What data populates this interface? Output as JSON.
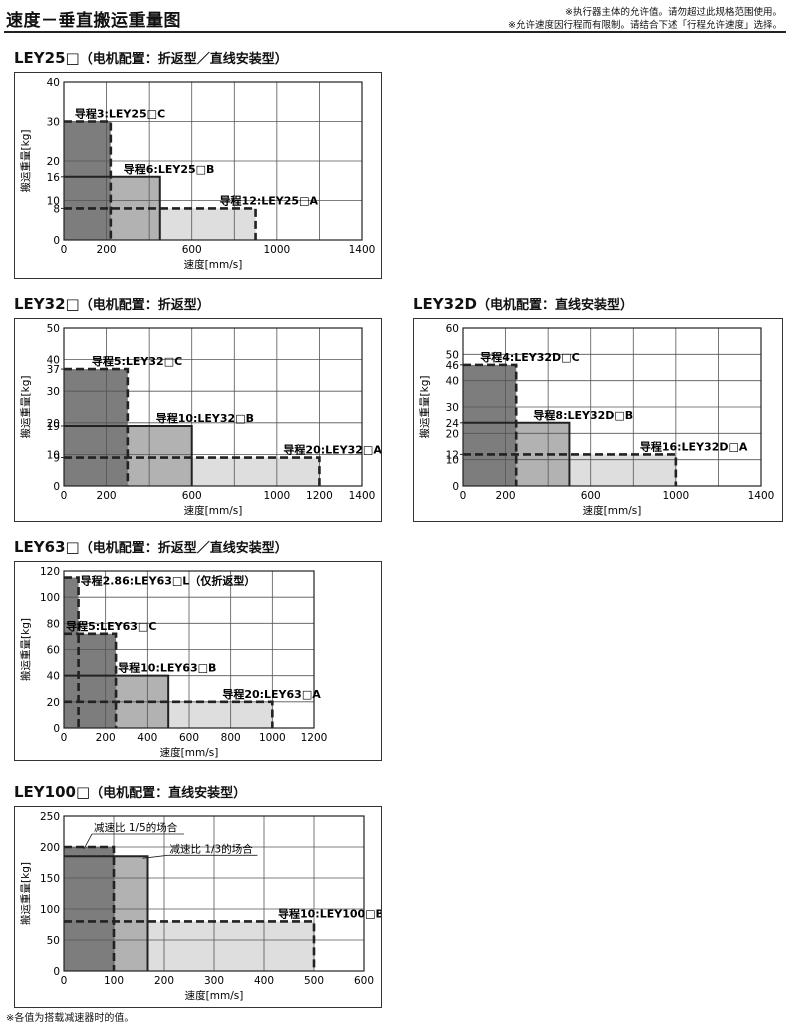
{
  "header": {
    "title": "速度－垂直搬运重量图",
    "notes": [
      "※执行器主体的允许值。请勿超过此规格范围使用。",
      "※允许速度因行程而有限制。请结合下述「行程允许速度」选择。"
    ]
  },
  "footnote": "※各值为搭载减速器时的值。",
  "panels": [
    {
      "model": "LEY25□",
      "config": "（电机配置：折返型／直线安装型）"
    },
    {
      "model": "LEY32□",
      "config": "（电机配置：折返型）"
    },
    {
      "model": "LEY32D",
      "config": "（电机配置：直线安装型）"
    },
    {
      "model": "LEY63□",
      "config": "（电机配置：折返型／直线安装型）"
    },
    {
      "model": "LEY100□",
      "config": "（电机配置：直线安装型）"
    }
  ],
  "colors": {
    "dark": "#7d7d7d",
    "mid": "#b2b2b2",
    "light": "#dedede",
    "grid": "#555555",
    "line": "#222222"
  },
  "chart_data": [
    {
      "type": "area",
      "xlabel": "速度[mm/s]",
      "ylabel": "搬运重量[kg]",
      "xlim": [
        0,
        1400
      ],
      "ylim": [
        0,
        40
      ],
      "xticks": [
        0,
        200,
        600,
        1000,
        1400
      ],
      "yticks": [
        0,
        8,
        10,
        16,
        20,
        30,
        40
      ],
      "grid": true,
      "series": [
        {
          "name": "导程3:LEY25□C",
          "speed_max": 220,
          "load_max": 30,
          "shade": "dark",
          "style": "dashed"
        },
        {
          "name": "导程6:LEY25□B",
          "speed_max": 450,
          "load_max": 16,
          "shade": "mid",
          "style": "solid"
        },
        {
          "name": "导程12:LEY25□A",
          "speed_max": 900,
          "load_max": 8,
          "shade": "light",
          "style": "dashed"
        }
      ]
    },
    {
      "type": "area",
      "xlabel": "速度[mm/s]",
      "ylabel": "搬运重量[kg]",
      "xlim": [
        0,
        1400
      ],
      "ylim": [
        0,
        50
      ],
      "xticks": [
        0,
        200,
        600,
        1000,
        1200,
        1400
      ],
      "yticks": [
        0,
        9,
        10,
        19,
        20,
        30,
        37,
        40,
        50
      ],
      "grid": true,
      "series": [
        {
          "name": "导程5:LEY32□C",
          "speed_max": 300,
          "load_max": 37,
          "shade": "dark",
          "style": "dashed"
        },
        {
          "name": "导程10:LEY32□B",
          "speed_max": 600,
          "load_max": 19,
          "shade": "mid",
          "style": "solid"
        },
        {
          "name": "导程20:LEY32□A",
          "speed_max": 1200,
          "load_max": 9,
          "shade": "light",
          "style": "dashed"
        }
      ]
    },
    {
      "type": "area",
      "xlabel": "速度[mm/s]",
      "ylabel": "搬运重量[kg]",
      "xlim": [
        0,
        1400
      ],
      "ylim": [
        0,
        60
      ],
      "xticks": [
        0,
        200,
        600,
        1000,
        1400
      ],
      "yticks": [
        0,
        10,
        12,
        20,
        24,
        30,
        40,
        46,
        50,
        60
      ],
      "grid": true,
      "series": [
        {
          "name": "导程4:LEY32D□C",
          "speed_max": 250,
          "load_max": 46,
          "shade": "dark",
          "style": "dashed"
        },
        {
          "name": "导程8:LEY32D□B",
          "speed_max": 500,
          "load_max": 24,
          "shade": "mid",
          "style": "solid"
        },
        {
          "name": "导程16:LEY32D□A",
          "speed_max": 1000,
          "load_max": 12,
          "shade": "light",
          "style": "dashed"
        }
      ]
    },
    {
      "type": "area",
      "xlabel": "速度[mm/s]",
      "ylabel": "搬运重量[kg]",
      "xlim": [
        0,
        1200
      ],
      "ylim": [
        0,
        120
      ],
      "xticks": [
        0,
        200,
        400,
        600,
        800,
        1000,
        1200
      ],
      "yticks": [
        0,
        20,
        40,
        60,
        80,
        100,
        120
      ],
      "grid": true,
      "series": [
        {
          "name": "导程2.86:LEY63□L（仅折返型）",
          "speed_max": 70,
          "load_max": 115,
          "shade": "dark",
          "style": "dashed"
        },
        {
          "name": "导程5:LEY63□C",
          "speed_max": 250,
          "load_max": 72,
          "shade": "dark",
          "style": "dashed"
        },
        {
          "name": "导程10:LEY63□B",
          "speed_max": 500,
          "load_max": 40,
          "shade": "mid",
          "style": "solid"
        },
        {
          "name": "导程20:LEY63□A",
          "speed_max": 1000,
          "load_max": 20,
          "shade": "light",
          "style": "dashed"
        }
      ]
    },
    {
      "type": "area",
      "xlabel": "速度[mm/s]",
      "ylabel": "搬运重量[kg]",
      "xlim": [
        0,
        600
      ],
      "ylim": [
        0,
        250
      ],
      "xticks": [
        0,
        100,
        200,
        300,
        400,
        500,
        600
      ],
      "yticks": [
        0,
        50,
        100,
        150,
        200,
        250
      ],
      "grid": true,
      "series": [
        {
          "name": "减速比 1/5的场合",
          "speed_max": 100,
          "load_max": 200,
          "shade": "dark",
          "style": "dashed"
        },
        {
          "name": "减速比 1/3的场合",
          "speed_max": 167,
          "load_max": 185,
          "shade": "mid",
          "style": "solid"
        },
        {
          "name": "导程10:LEY100□B",
          "speed_max": 500,
          "load_max": 80,
          "shade": "light",
          "style": "dashed"
        }
      ]
    }
  ]
}
